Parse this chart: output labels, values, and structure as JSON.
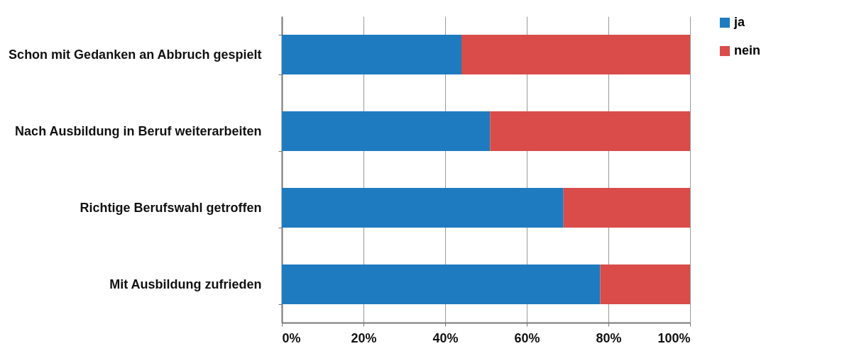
{
  "chart_data": {
    "type": "bar",
    "orientation": "horizontal",
    "stacked": true,
    "categories": [
      "Schon mit Gedanken an Abbruch gespielt",
      "Nach Ausbildung in Beruf weiterarbeiten",
      "Richtige Berufswahl getroffen",
      "Mit Ausbildung zufrieden"
    ],
    "series": [
      {
        "name": "ja",
        "color": "#1f7bbf",
        "values": [
          44,
          51,
          69,
          78
        ]
      },
      {
        "name": "nein",
        "color": "#d94c4a",
        "values": [
          56,
          49,
          31,
          22
        ]
      }
    ],
    "xlim": [
      0,
      100
    ],
    "xticks": [
      {
        "value": 0,
        "label": "0%"
      },
      {
        "value": 20,
        "label": "20%"
      },
      {
        "value": 40,
        "label": "40%"
      },
      {
        "value": 60,
        "label": "60%"
      },
      {
        "value": 80,
        "label": "80%"
      },
      {
        "value": 100,
        "label": "100%"
      }
    ],
    "grid": "x",
    "legend": "right"
  }
}
